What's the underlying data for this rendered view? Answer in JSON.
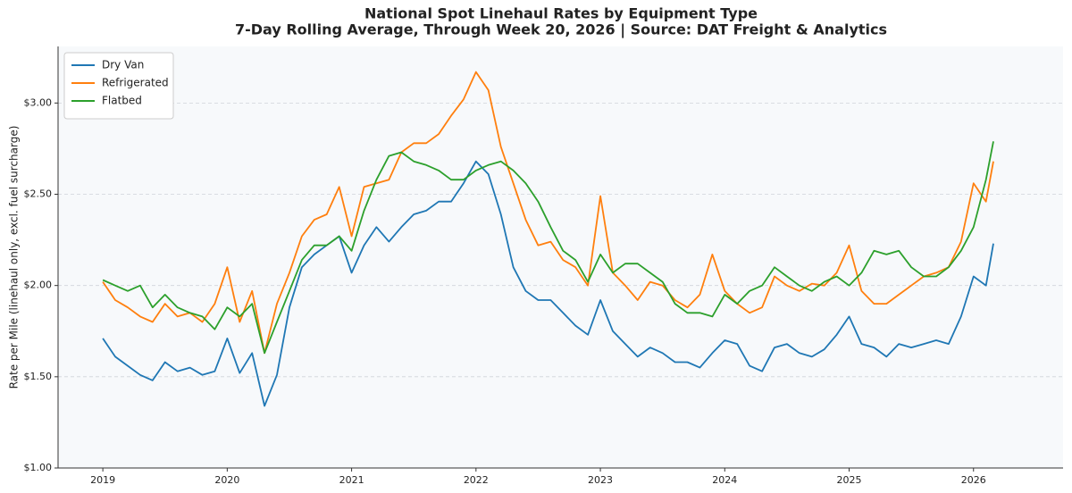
{
  "chart_data": {
    "type": "line",
    "title": "National Spot Linehaul Rates by Equipment Type",
    "subtitle": "7-Day Rolling Average, Through Week 20, 2026  |  Source: DAT Freight & Analytics",
    "y_label": "Rate per Mile (linehaul only, excl. fuel surcharge)",
    "x": [
      2019.0,
      2019.1,
      2019.2,
      2019.3,
      2019.4,
      2019.5,
      2019.6,
      2019.7,
      2019.8,
      2019.9,
      2020.0,
      2020.1,
      2020.2,
      2020.3,
      2020.4,
      2020.5,
      2020.6,
      2020.7,
      2020.8,
      2020.9,
      2021.0,
      2021.1,
      2021.2,
      2021.3,
      2021.4,
      2021.5,
      2021.6,
      2021.7,
      2021.8,
      2021.9,
      2022.0,
      2022.1,
      2022.2,
      2022.3,
      2022.4,
      2022.5,
      2022.6,
      2022.7,
      2022.8,
      2022.9,
      2023.0,
      2023.1,
      2023.2,
      2023.3,
      2023.4,
      2023.5,
      2023.6,
      2023.7,
      2023.8,
      2023.9,
      2024.0,
      2024.1,
      2024.2,
      2024.3,
      2024.4,
      2024.5,
      2024.6,
      2024.7,
      2024.8,
      2024.9,
      2025.0,
      2025.1,
      2025.2,
      2025.3,
      2025.4,
      2025.5,
      2025.6,
      2025.7,
      2025.8,
      2025.9,
      2026.0,
      2026.1,
      2026.16
    ],
    "series": [
      {
        "name": "Dry Van",
        "color": "#1f77b4",
        "values": [
          1.71,
          1.61,
          1.56,
          1.51,
          1.48,
          1.58,
          1.53,
          1.55,
          1.51,
          1.53,
          1.71,
          1.52,
          1.63,
          1.34,
          1.51,
          1.88,
          2.1,
          2.17,
          2.22,
          2.27,
          2.07,
          2.22,
          2.32,
          2.24,
          2.32,
          2.39,
          2.41,
          2.46,
          2.46,
          2.56,
          2.68,
          2.61,
          2.39,
          2.1,
          1.97,
          1.92,
          1.92,
          1.85,
          1.78,
          1.73,
          1.92,
          1.75,
          1.68,
          1.61,
          1.66,
          1.63,
          1.58,
          1.58,
          1.55,
          1.63,
          1.7,
          1.68,
          1.56,
          1.53,
          1.66,
          1.68,
          1.63,
          1.61,
          1.65,
          1.73,
          1.83,
          1.68,
          1.66,
          1.61,
          1.68,
          1.66,
          1.68,
          1.7,
          1.68,
          1.83,
          2.05,
          2.0,
          2.23
        ]
      },
      {
        "name": "Refrigerated",
        "color": "#ff7f0e",
        "values": [
          2.02,
          1.92,
          1.88,
          1.83,
          1.8,
          1.9,
          1.83,
          1.85,
          1.8,
          1.9,
          2.1,
          1.8,
          1.97,
          1.63,
          1.9,
          2.07,
          2.27,
          2.36,
          2.39,
          2.54,
          2.27,
          2.54,
          2.56,
          2.58,
          2.73,
          2.78,
          2.78,
          2.83,
          2.93,
          3.02,
          3.17,
          3.07,
          2.76,
          2.56,
          2.36,
          2.22,
          2.24,
          2.14,
          2.1,
          2.0,
          2.49,
          2.07,
          2.0,
          1.92,
          2.02,
          2.0,
          1.92,
          1.88,
          1.95,
          2.17,
          1.97,
          1.9,
          1.85,
          1.88,
          2.05,
          2.0,
          1.97,
          2.01,
          2.0,
          2.07,
          2.22,
          1.97,
          1.9,
          1.9,
          1.95,
          2.0,
          2.05,
          2.07,
          2.1,
          2.24,
          2.56,
          2.46,
          2.68
        ]
      },
      {
        "name": "Flatbed",
        "color": "#2ca02c",
        "values": [
          2.03,
          2.0,
          1.97,
          2.0,
          1.88,
          1.95,
          1.88,
          1.85,
          1.83,
          1.76,
          1.88,
          1.83,
          1.9,
          1.63,
          1.8,
          1.97,
          2.14,
          2.22,
          2.22,
          2.27,
          2.19,
          2.41,
          2.58,
          2.71,
          2.73,
          2.68,
          2.66,
          2.63,
          2.58,
          2.58,
          2.63,
          2.66,
          2.68,
          2.63,
          2.56,
          2.46,
          2.32,
          2.19,
          2.14,
          2.02,
          2.17,
          2.07,
          2.12,
          2.12,
          2.07,
          2.02,
          1.9,
          1.85,
          1.85,
          1.83,
          1.95,
          1.9,
          1.97,
          2.0,
          2.1,
          2.05,
          2.0,
          1.97,
          2.02,
          2.05,
          2.0,
          2.07,
          2.19,
          2.17,
          2.19,
          2.1,
          2.05,
          2.05,
          2.1,
          2.19,
          2.32,
          2.58,
          2.79
        ]
      }
    ],
    "xlim": [
      2018.64,
      2026.72
    ],
    "ylim": [
      1.0,
      3.31
    ],
    "xticks": [
      2019,
      2020,
      2021,
      2022,
      2023,
      2024,
      2025,
      2026
    ],
    "yticks": [
      {
        "value": 1.0,
        "label": "$1.00"
      },
      {
        "value": 1.5,
        "label": "$1.50"
      },
      {
        "value": 2.0,
        "label": "$2.00"
      },
      {
        "value": 2.5,
        "label": "$2.50"
      },
      {
        "value": 3.0,
        "label": "$3.00"
      }
    ],
    "grid": true,
    "legend": "upper left"
  }
}
